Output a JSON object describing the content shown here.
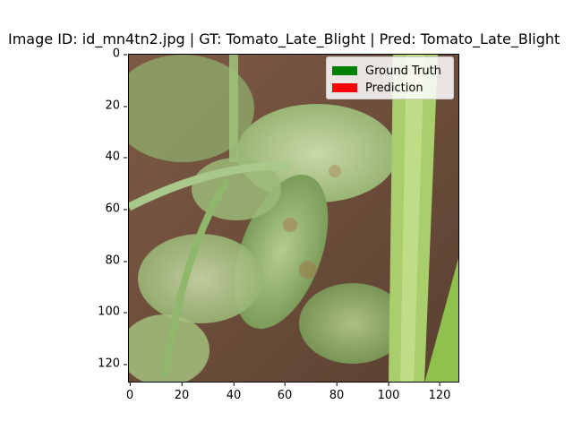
{
  "figure": {
    "title": "Image ID: id_mn4tn2.jpg | GT: Tomato_Late_Blight | Pred: Tomato_Late_Blight",
    "image_description": "Tomato plant leaves with late blight lesions; green stems, brown soil background, tall grass blade on right",
    "legend": [
      {
        "label": "Ground Truth",
        "color": "#008000"
      },
      {
        "label": "Prediction",
        "color": "#ff0000"
      }
    ],
    "y_ticks": [
      "0",
      "20",
      "40",
      "60",
      "80",
      "100",
      "120"
    ],
    "x_ticks": [
      "0",
      "20",
      "40",
      "60",
      "80",
      "100",
      "120"
    ]
  }
}
